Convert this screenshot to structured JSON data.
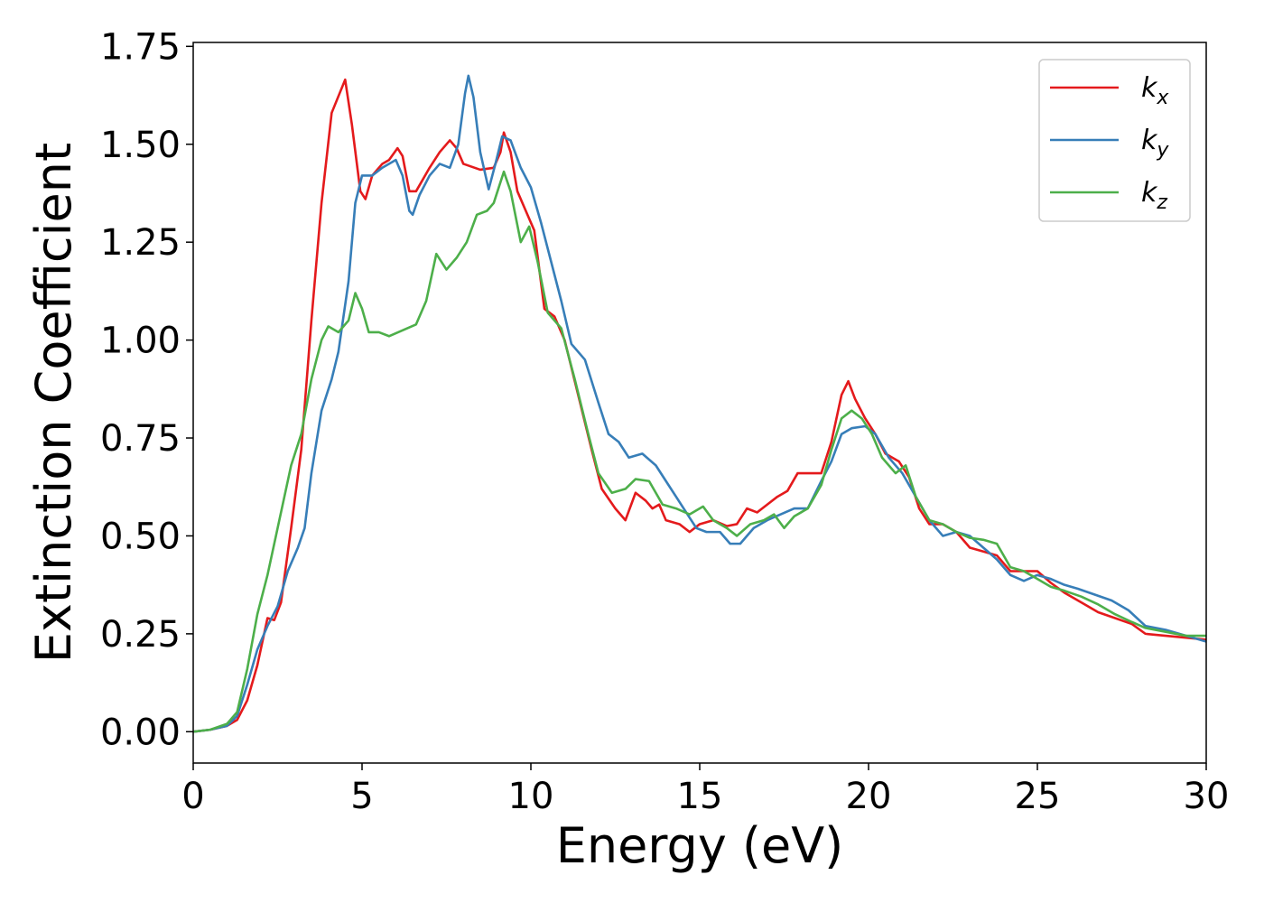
{
  "chart_data": {
    "type": "line",
    "title": "",
    "xlabel": "Energy (eV)",
    "ylabel": "Extinction Coefficient",
    "xlim": [
      0,
      30
    ],
    "ylim": [
      -0.08,
      1.76
    ],
    "xticks": [
      0,
      5,
      10,
      15,
      20,
      25,
      30
    ],
    "yticks": [
      0.0,
      0.25,
      0.5,
      0.75,
      1.0,
      1.25,
      1.5,
      1.75
    ],
    "xtick_labels": [
      "0",
      "5",
      "10",
      "15",
      "20",
      "25",
      "30"
    ],
    "ytick_labels": [
      "0.00",
      "0.25",
      "0.50",
      "0.75",
      "1.00",
      "1.25",
      "1.50",
      "1.75"
    ],
    "grid": false,
    "legend_position": "top-right",
    "series": [
      {
        "name": "k_x",
        "label_base": "k",
        "label_sub": "x",
        "color": "#e41a1c",
        "points": [
          [
            0,
            0.0
          ],
          [
            0.5,
            0.005
          ],
          [
            1.0,
            0.015
          ],
          [
            1.3,
            0.03
          ],
          [
            1.6,
            0.08
          ],
          [
            1.9,
            0.17
          ],
          [
            2.2,
            0.29
          ],
          [
            2.4,
            0.285
          ],
          [
            2.6,
            0.33
          ],
          [
            2.9,
            0.52
          ],
          [
            3.2,
            0.72
          ],
          [
            3.5,
            1.05
          ],
          [
            3.8,
            1.35
          ],
          [
            4.1,
            1.58
          ],
          [
            4.5,
            1.665
          ],
          [
            4.7,
            1.55
          ],
          [
            4.95,
            1.38
          ],
          [
            5.1,
            1.36
          ],
          [
            5.3,
            1.42
          ],
          [
            5.6,
            1.45
          ],
          [
            5.8,
            1.46
          ],
          [
            6.05,
            1.49
          ],
          [
            6.2,
            1.47
          ],
          [
            6.4,
            1.38
          ],
          [
            6.6,
            1.38
          ],
          [
            6.8,
            1.41
          ],
          [
            7.0,
            1.44
          ],
          [
            7.3,
            1.48
          ],
          [
            7.6,
            1.51
          ],
          [
            7.8,
            1.49
          ],
          [
            8.0,
            1.45
          ],
          [
            8.5,
            1.435
          ],
          [
            8.9,
            1.44
          ],
          [
            9.1,
            1.48
          ],
          [
            9.2,
            1.53
          ],
          [
            9.4,
            1.48
          ],
          [
            9.6,
            1.38
          ],
          [
            9.9,
            1.32
          ],
          [
            10.1,
            1.28
          ],
          [
            10.4,
            1.08
          ],
          [
            10.7,
            1.06
          ],
          [
            11.0,
            1.0
          ],
          [
            11.4,
            0.86
          ],
          [
            11.8,
            0.72
          ],
          [
            12.1,
            0.62
          ],
          [
            12.5,
            0.57
          ],
          [
            12.8,
            0.54
          ],
          [
            13.1,
            0.61
          ],
          [
            13.4,
            0.59
          ],
          [
            13.6,
            0.57
          ],
          [
            13.8,
            0.58
          ],
          [
            14.0,
            0.54
          ],
          [
            14.4,
            0.53
          ],
          [
            14.7,
            0.51
          ],
          [
            15.0,
            0.53
          ],
          [
            15.4,
            0.54
          ],
          [
            15.8,
            0.525
          ],
          [
            16.1,
            0.53
          ],
          [
            16.4,
            0.57
          ],
          [
            16.7,
            0.56
          ],
          [
            17.0,
            0.58
          ],
          [
            17.3,
            0.6
          ],
          [
            17.6,
            0.615
          ],
          [
            17.9,
            0.66
          ],
          [
            18.2,
            0.66
          ],
          [
            18.6,
            0.66
          ],
          [
            18.9,
            0.74
          ],
          [
            19.2,
            0.86
          ],
          [
            19.4,
            0.895
          ],
          [
            19.6,
            0.85
          ],
          [
            19.9,
            0.8
          ],
          [
            20.2,
            0.76
          ],
          [
            20.5,
            0.71
          ],
          [
            20.9,
            0.69
          ],
          [
            21.2,
            0.65
          ],
          [
            21.5,
            0.57
          ],
          [
            21.8,
            0.53
          ],
          [
            22.2,
            0.53
          ],
          [
            22.6,
            0.51
          ],
          [
            23.0,
            0.47
          ],
          [
            23.4,
            0.46
          ],
          [
            23.8,
            0.45
          ],
          [
            24.2,
            0.41
          ],
          [
            24.6,
            0.41
          ],
          [
            25.0,
            0.41
          ],
          [
            25.4,
            0.38
          ],
          [
            25.8,
            0.355
          ],
          [
            26.3,
            0.33
          ],
          [
            26.8,
            0.305
          ],
          [
            27.3,
            0.29
          ],
          [
            27.8,
            0.275
          ],
          [
            28.2,
            0.25
          ],
          [
            28.8,
            0.245
          ],
          [
            29.4,
            0.24
          ],
          [
            30.0,
            0.235
          ]
        ]
      },
      {
        "name": "k_y",
        "label_base": "k",
        "label_sub": "y",
        "color": "#377eb8",
        "points": [
          [
            0,
            0.0
          ],
          [
            0.5,
            0.005
          ],
          [
            1.0,
            0.015
          ],
          [
            1.3,
            0.04
          ],
          [
            1.6,
            0.12
          ],
          [
            1.9,
            0.21
          ],
          [
            2.2,
            0.27
          ],
          [
            2.5,
            0.32
          ],
          [
            2.8,
            0.41
          ],
          [
            3.1,
            0.47
          ],
          [
            3.3,
            0.52
          ],
          [
            3.5,
            0.66
          ],
          [
            3.8,
            0.82
          ],
          [
            4.1,
            0.9
          ],
          [
            4.3,
            0.97
          ],
          [
            4.6,
            1.15
          ],
          [
            4.8,
            1.35
          ],
          [
            5.0,
            1.42
          ],
          [
            5.3,
            1.42
          ],
          [
            5.6,
            1.44
          ],
          [
            6.0,
            1.46
          ],
          [
            6.2,
            1.42
          ],
          [
            6.4,
            1.33
          ],
          [
            6.5,
            1.32
          ],
          [
            6.7,
            1.37
          ],
          [
            7.0,
            1.42
          ],
          [
            7.3,
            1.45
          ],
          [
            7.6,
            1.44
          ],
          [
            7.85,
            1.5
          ],
          [
            8.05,
            1.63
          ],
          [
            8.15,
            1.675
          ],
          [
            8.3,
            1.62
          ],
          [
            8.5,
            1.48
          ],
          [
            8.75,
            1.385
          ],
          [
            8.95,
            1.45
          ],
          [
            9.15,
            1.52
          ],
          [
            9.4,
            1.51
          ],
          [
            9.7,
            1.44
          ],
          [
            10.0,
            1.39
          ],
          [
            10.3,
            1.3
          ],
          [
            10.6,
            1.2
          ],
          [
            10.9,
            1.1
          ],
          [
            11.2,
            0.99
          ],
          [
            11.6,
            0.95
          ],
          [
            12.0,
            0.84
          ],
          [
            12.3,
            0.76
          ],
          [
            12.6,
            0.74
          ],
          [
            12.9,
            0.7
          ],
          [
            13.3,
            0.71
          ],
          [
            13.7,
            0.68
          ],
          [
            14.0,
            0.64
          ],
          [
            14.3,
            0.6
          ],
          [
            14.6,
            0.56
          ],
          [
            14.9,
            0.52
          ],
          [
            15.2,
            0.51
          ],
          [
            15.6,
            0.51
          ],
          [
            15.9,
            0.48
          ],
          [
            16.2,
            0.48
          ],
          [
            16.6,
            0.52
          ],
          [
            17.0,
            0.54
          ],
          [
            17.4,
            0.555
          ],
          [
            17.8,
            0.57
          ],
          [
            18.2,
            0.57
          ],
          [
            18.6,
            0.64
          ],
          [
            18.9,
            0.69
          ],
          [
            19.2,
            0.76
          ],
          [
            19.5,
            0.775
          ],
          [
            19.9,
            0.78
          ],
          [
            20.2,
            0.76
          ],
          [
            20.6,
            0.7
          ],
          [
            21.0,
            0.66
          ],
          [
            21.4,
            0.6
          ],
          [
            21.8,
            0.54
          ],
          [
            22.2,
            0.5
          ],
          [
            22.6,
            0.51
          ],
          [
            23.0,
            0.5
          ],
          [
            23.4,
            0.47
          ],
          [
            23.8,
            0.44
          ],
          [
            24.2,
            0.4
          ],
          [
            24.6,
            0.385
          ],
          [
            25.0,
            0.4
          ],
          [
            25.4,
            0.39
          ],
          [
            25.8,
            0.375
          ],
          [
            26.2,
            0.365
          ],
          [
            26.7,
            0.35
          ],
          [
            27.2,
            0.335
          ],
          [
            27.7,
            0.31
          ],
          [
            28.2,
            0.27
          ],
          [
            28.8,
            0.26
          ],
          [
            29.4,
            0.245
          ],
          [
            30.0,
            0.23
          ]
        ]
      },
      {
        "name": "k_z",
        "label_base": "k",
        "label_sub": "z",
        "color": "#4daf4a",
        "points": [
          [
            0,
            0.0
          ],
          [
            0.5,
            0.005
          ],
          [
            1.0,
            0.02
          ],
          [
            1.3,
            0.05
          ],
          [
            1.6,
            0.16
          ],
          [
            1.9,
            0.3
          ],
          [
            2.2,
            0.4
          ],
          [
            2.5,
            0.52
          ],
          [
            2.9,
            0.68
          ],
          [
            3.2,
            0.76
          ],
          [
            3.5,
            0.9
          ],
          [
            3.8,
            1.0
          ],
          [
            4.0,
            1.035
          ],
          [
            4.3,
            1.02
          ],
          [
            4.6,
            1.05
          ],
          [
            4.8,
            1.12
          ],
          [
            5.0,
            1.08
          ],
          [
            5.2,
            1.02
          ],
          [
            5.5,
            1.02
          ],
          [
            5.8,
            1.01
          ],
          [
            6.2,
            1.025
          ],
          [
            6.6,
            1.04
          ],
          [
            6.9,
            1.1
          ],
          [
            7.2,
            1.22
          ],
          [
            7.5,
            1.18
          ],
          [
            7.8,
            1.21
          ],
          [
            8.1,
            1.25
          ],
          [
            8.4,
            1.32
          ],
          [
            8.7,
            1.33
          ],
          [
            8.9,
            1.35
          ],
          [
            9.2,
            1.43
          ],
          [
            9.4,
            1.38
          ],
          [
            9.7,
            1.25
          ],
          [
            9.95,
            1.29
          ],
          [
            10.2,
            1.2
          ],
          [
            10.5,
            1.07
          ],
          [
            10.9,
            1.03
          ],
          [
            11.3,
            0.9
          ],
          [
            11.7,
            0.76
          ],
          [
            12.0,
            0.66
          ],
          [
            12.4,
            0.61
          ],
          [
            12.8,
            0.62
          ],
          [
            13.1,
            0.645
          ],
          [
            13.5,
            0.64
          ],
          [
            13.9,
            0.58
          ],
          [
            14.3,
            0.57
          ],
          [
            14.7,
            0.555
          ],
          [
            15.1,
            0.575
          ],
          [
            15.4,
            0.54
          ],
          [
            15.8,
            0.52
          ],
          [
            16.1,
            0.5
          ],
          [
            16.5,
            0.53
          ],
          [
            16.9,
            0.54
          ],
          [
            17.2,
            0.555
          ],
          [
            17.5,
            0.52
          ],
          [
            17.8,
            0.55
          ],
          [
            18.2,
            0.57
          ],
          [
            18.6,
            0.63
          ],
          [
            18.9,
            0.72
          ],
          [
            19.2,
            0.8
          ],
          [
            19.5,
            0.82
          ],
          [
            19.8,
            0.8
          ],
          [
            20.1,
            0.76
          ],
          [
            20.4,
            0.7
          ],
          [
            20.8,
            0.66
          ],
          [
            21.1,
            0.68
          ],
          [
            21.4,
            0.6
          ],
          [
            21.8,
            0.54
          ],
          [
            22.2,
            0.53
          ],
          [
            22.6,
            0.51
          ],
          [
            23.0,
            0.495
          ],
          [
            23.4,
            0.49
          ],
          [
            23.8,
            0.48
          ],
          [
            24.2,
            0.42
          ],
          [
            24.6,
            0.41
          ],
          [
            25.0,
            0.39
          ],
          [
            25.4,
            0.37
          ],
          [
            25.8,
            0.36
          ],
          [
            26.3,
            0.345
          ],
          [
            26.8,
            0.325
          ],
          [
            27.3,
            0.3
          ],
          [
            27.8,
            0.28
          ],
          [
            28.2,
            0.265
          ],
          [
            28.8,
            0.255
          ],
          [
            29.4,
            0.245
          ],
          [
            30.0,
            0.245
          ]
        ]
      }
    ]
  }
}
